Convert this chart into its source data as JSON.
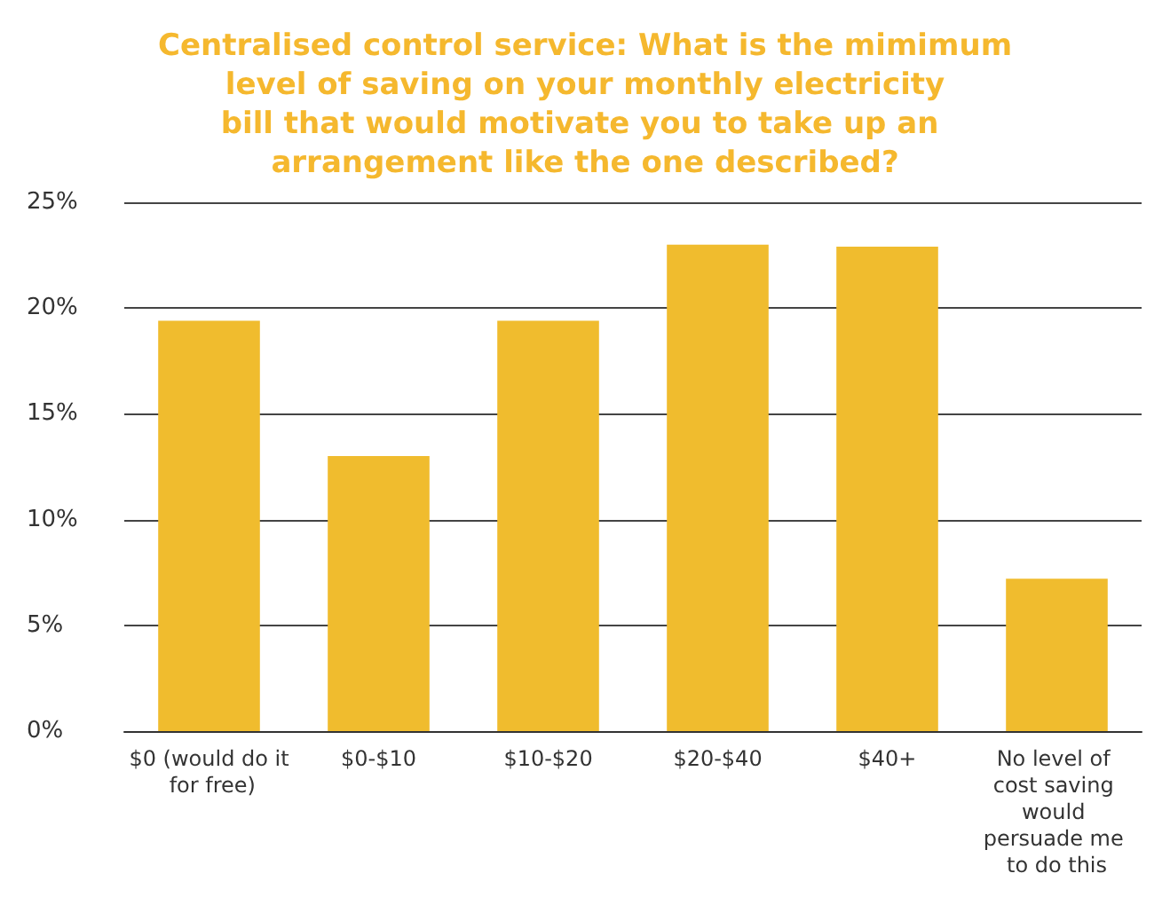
{
  "chart_data": {
    "type": "bar",
    "title": "Centralised control service: What is the mimimum level of saving on your monthly electricity bill that would motivate you to take up an arrangement like the one described?",
    "categories": [
      "$0 (would do it for free)",
      "$0-$10",
      "$10-$20",
      "$20-$40",
      "$40+",
      "No level of cost saving would persuade me to do this"
    ],
    "values": [
      19.4,
      13.0,
      19.4,
      23.0,
      22.9,
      7.2
    ],
    "color": "#f0bc2e",
    "ylim": [
      0,
      25
    ],
    "yticks": [
      {
        "value": 0,
        "label": "0%"
      },
      {
        "value": 5,
        "label": "5%"
      },
      {
        "value": 10,
        "label": "10%"
      },
      {
        "value": 15,
        "label": "15%"
      },
      {
        "value": 20,
        "label": "20%"
      },
      {
        "value": 25,
        "label": "25%"
      }
    ],
    "grid": "y"
  }
}
